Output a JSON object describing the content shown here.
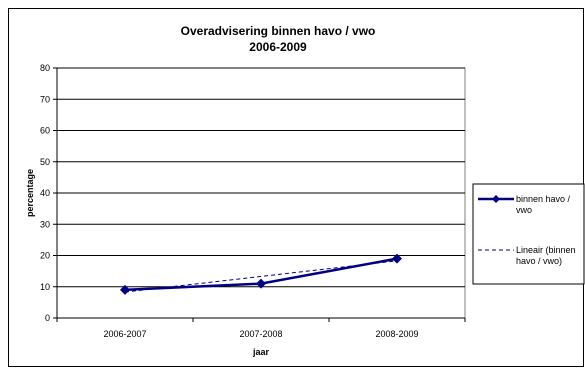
{
  "chart_data": {
    "type": "line",
    "title_lines": [
      "Overadvisering binnen havo / vwo",
      "2006-2009"
    ],
    "xlabel": "jaar",
    "ylabel": "percentage",
    "categories": [
      "2006-2007",
      "2007-2008",
      "2008-2009"
    ],
    "ylim": [
      0,
      80
    ],
    "yticks": [
      "0",
      "10",
      "20",
      "30",
      "40",
      "50",
      "60",
      "70",
      "80"
    ],
    "grid": true,
    "legend_position": "right",
    "series": [
      {
        "name_lines": [
          "binnen havo /",
          "vwo"
        ],
        "values": [
          9,
          11,
          19
        ],
        "color": "#000080",
        "marker": "diamond"
      }
    ],
    "trendline": {
      "name_lines": [
        "Lineair (binnen",
        "havo / vwo)"
      ],
      "values": [
        8.3,
        13.3,
        18.3
      ],
      "color": "#000080",
      "style": "dashed"
    }
  }
}
